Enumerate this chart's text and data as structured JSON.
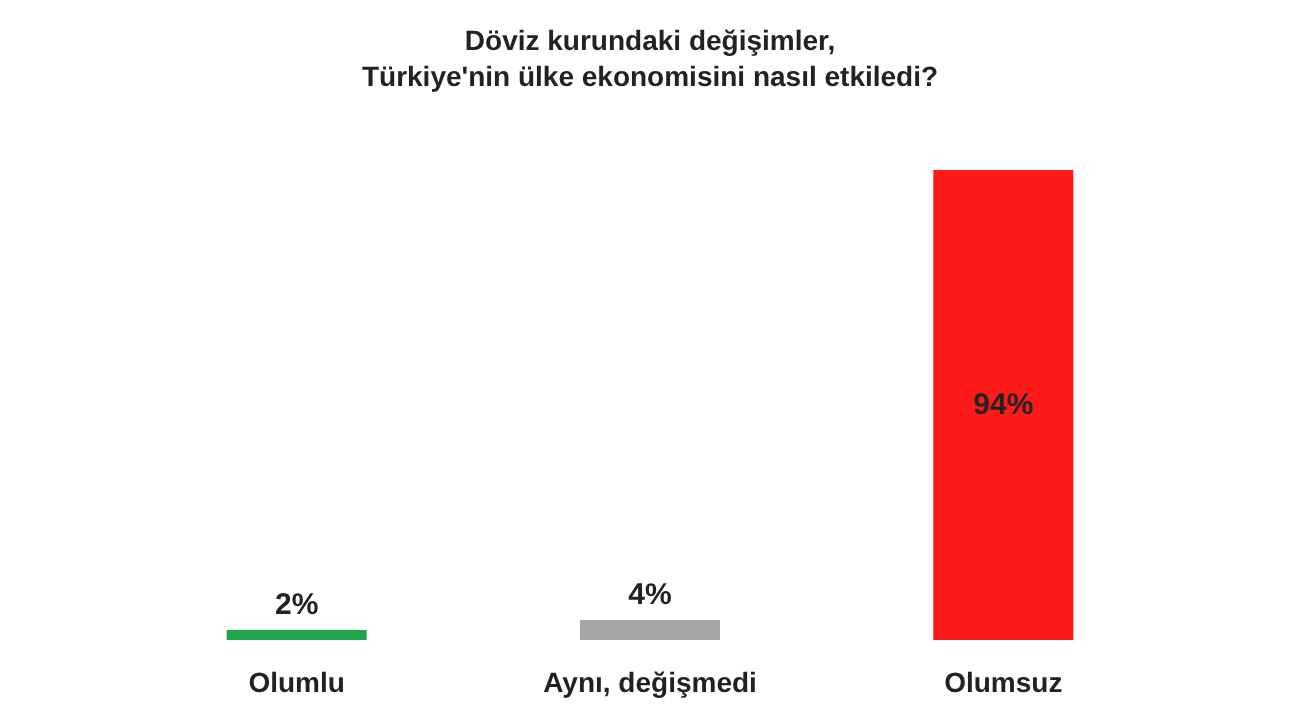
{
  "chart_data": {
    "type": "bar",
    "title": "Döviz kurundaki değişimler, Türkiye'nin ülke ekonomisini nasıl etkiledi?",
    "categories": [
      "Olumlu",
      "Aynı, değişmedi",
      "Olumsuz"
    ],
    "values": [
      2,
      4,
      94
    ],
    "colors": [
      "#1fa64a",
      "#a6a6a6",
      "#ff1a1a"
    ],
    "value_labels": [
      "2%",
      "4%",
      "94%"
    ]
  }
}
